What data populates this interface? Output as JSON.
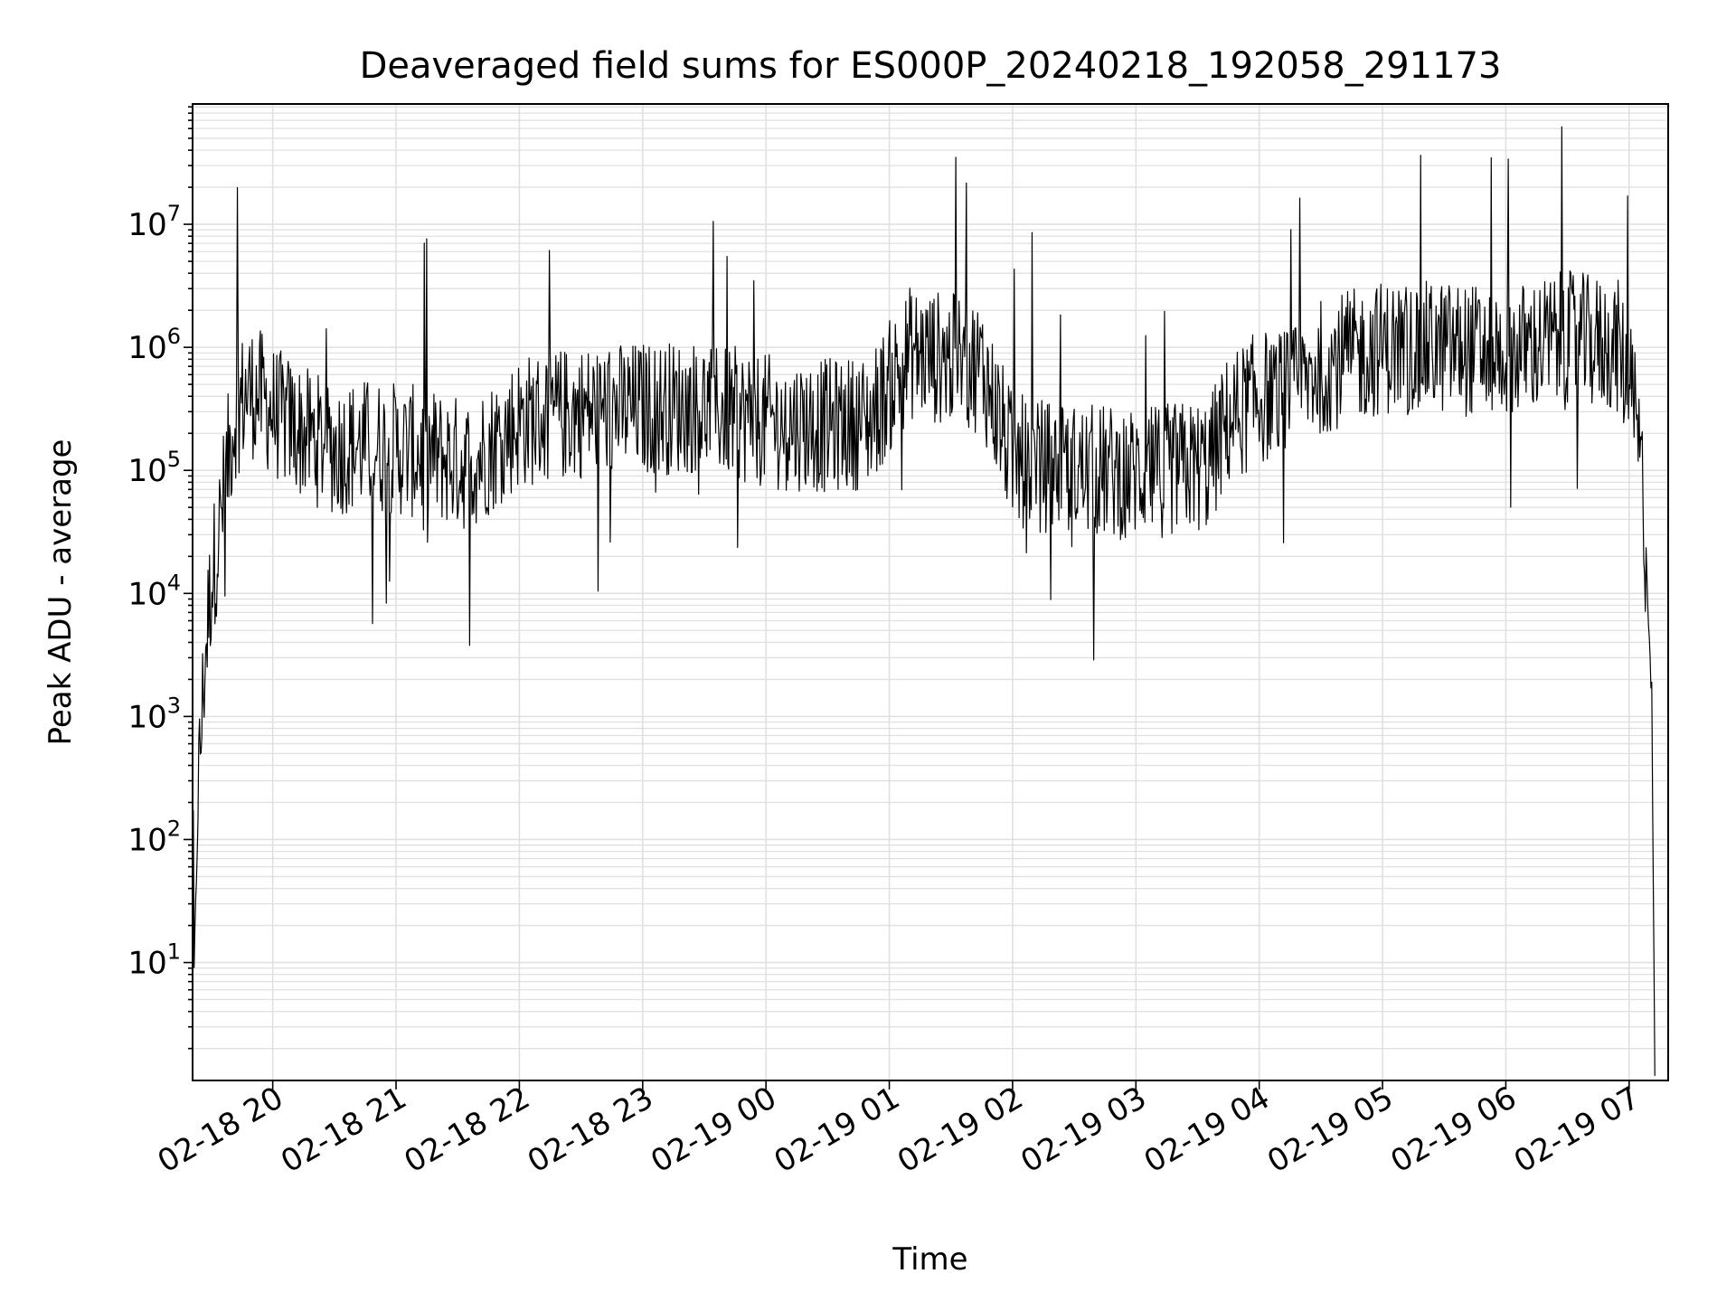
{
  "chart_data": {
    "type": "line",
    "title": "Deaveraged field sums for ES000P_20240218_192058_291173",
    "xlabel": "Time",
    "ylabel": "Peak ADU - average",
    "yscale": "log",
    "grid": true,
    "legend": "none",
    "series_color": "#000000",
    "grid_color": "#e0e0e0",
    "xlim": [
      "2024-02-18T19:21:00",
      "2024-02-19T07:19:00"
    ],
    "ylim": [
      1.1,
      95000000.0
    ],
    "x_ticks": [
      "2024-02-18T20:00:00",
      "2024-02-18T21:00:00",
      "2024-02-18T22:00:00",
      "2024-02-18T23:00:00",
      "2024-02-19T00:00:00",
      "2024-02-19T01:00:00",
      "2024-02-19T02:00:00",
      "2024-02-19T03:00:00",
      "2024-02-19T04:00:00",
      "2024-02-19T05:00:00",
      "2024-02-19T06:00:00",
      "2024-02-19T07:00:00"
    ],
    "x_tick_labels": [
      "02-18 20",
      "02-18 21",
      "02-18 22",
      "02-18 23",
      "02-19 00",
      "02-19 01",
      "02-19 02",
      "02-19 03",
      "02-19 04",
      "02-19 05",
      "02-19 06",
      "02-19 07"
    ],
    "y_ticks": [
      {
        "value": 10,
        "base": "10",
        "exp": "1"
      },
      {
        "value": 100,
        "base": "10",
        "exp": "2"
      },
      {
        "value": 1000,
        "base": "10",
        "exp": "3"
      },
      {
        "value": 10000,
        "base": "10",
        "exp": "4"
      },
      {
        "value": 100000,
        "base": "10",
        "exp": "5"
      },
      {
        "value": 1000000,
        "base": "10",
        "exp": "6"
      },
      {
        "value": 10000000,
        "base": "10",
        "exp": "7"
      }
    ],
    "series": [
      {
        "x": [
          "2024-02-18T19:21:00",
          "2024-02-18T19:24:00",
          "2024-02-18T19:27:00",
          "2024-02-18T19:30:00",
          "2024-02-18T19:33:00",
          "2024-02-18T19:36:00",
          "2024-02-18T19:39:00",
          "2024-02-18T19:42:00",
          "2024-02-18T19:48:00",
          "2024-02-18T19:54:00",
          "2024-02-18T20:00:00",
          "2024-02-18T20:15:00",
          "2024-02-18T20:30:00",
          "2024-02-18T20:45:00",
          "2024-02-18T21:00:00",
          "2024-02-18T21:20:00",
          "2024-02-18T21:35:00",
          "2024-02-18T21:45:00",
          "2024-02-18T22:00:00",
          "2024-02-18T22:30:00",
          "2024-02-18T23:00:00",
          "2024-02-18T23:30:00",
          "2024-02-19T00:00:00",
          "2024-02-19T00:30:00",
          "2024-02-19T00:50:00",
          "2024-02-19T01:10:00",
          "2024-02-19T01:30:00",
          "2024-02-19T01:45:00",
          "2024-02-19T02:00:00",
          "2024-02-19T02:30:00",
          "2024-02-19T03:00:00",
          "2024-02-19T03:35:00",
          "2024-02-19T03:45:00",
          "2024-02-19T04:00:00",
          "2024-02-19T04:15:00",
          "2024-02-19T04:30:00",
          "2024-02-19T05:00:00",
          "2024-02-19T05:30:00",
          "2024-02-19T06:00:00",
          "2024-02-19T06:30:00",
          "2024-02-19T06:55:00",
          "2024-02-19T07:02:00",
          "2024-02-19T07:06:00",
          "2024-02-19T07:09:00",
          "2024-02-19T07:11:00",
          "2024-02-19T07:12:30"
        ],
        "y": [
          2.5,
          300,
          3000,
          12000,
          25000,
          60000,
          150000,
          300000,
          450000,
          400000,
          300000,
          200000,
          150000,
          160000,
          150000,
          130000,
          110000,
          150000,
          250000,
          300000,
          320000,
          330000,
          250000,
          230000,
          250000,
          900000,
          800000,
          700000,
          120000,
          100000,
          95000,
          110000,
          250000,
          400000,
          400000,
          700000,
          1000000,
          1000000,
          900000,
          1200000,
          1000000,
          350000,
          100000,
          10000,
          1500,
          1.2
        ]
      }
    ]
  }
}
